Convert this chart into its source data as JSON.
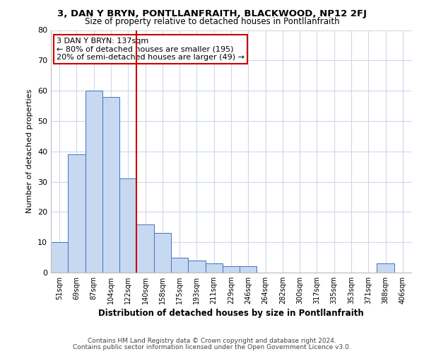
{
  "title": "3, DAN Y BRYN, PONTLLANFRAITH, BLACKWOOD, NP12 2FJ",
  "subtitle": "Size of property relative to detached houses in Pontllanfraith",
  "xlabel": "Distribution of detached houses by size in Pontllanfraith",
  "ylabel": "Number of detached properties",
  "bar_labels": [
    "51sqm",
    "69sqm",
    "87sqm",
    "104sqm",
    "122sqm",
    "140sqm",
    "158sqm",
    "175sqm",
    "193sqm",
    "211sqm",
    "229sqm",
    "246sqm",
    "264sqm",
    "282sqm",
    "300sqm",
    "317sqm",
    "335sqm",
    "353sqm",
    "371sqm",
    "388sqm",
    "406sqm"
  ],
  "bar_values": [
    10,
    39,
    60,
    58,
    31,
    16,
    13,
    5,
    4,
    3,
    2,
    2,
    0,
    0,
    0,
    0,
    0,
    0,
    0,
    3,
    0
  ],
  "bar_color": "#c6d9f0",
  "bar_edge_color": "#4472c4",
  "vline_x": 4.5,
  "vline_color": "#cc0000",
  "annotation_text": "3 DAN Y BRYN: 137sqm\n← 80% of detached houses are smaller (195)\n20% of semi-detached houses are larger (49) →",
  "annotation_box_edge": "#cc0000",
  "ylim": [
    0,
    80
  ],
  "yticks": [
    0,
    10,
    20,
    30,
    40,
    50,
    60,
    70,
    80
  ],
  "footer1": "Contains HM Land Registry data © Crown copyright and database right 2024.",
  "footer2": "Contains public sector information licensed under the Open Government Licence v3.0.",
  "background_color": "#ffffff",
  "grid_color": "#ccd9e8"
}
